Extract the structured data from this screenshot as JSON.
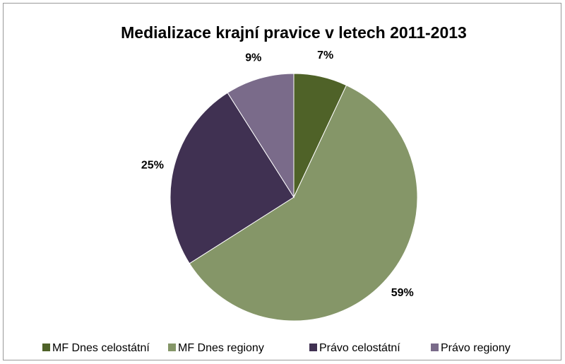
{
  "chart_data": {
    "type": "pie",
    "title": "Medializace krajní pravice v letech 2011-2013",
    "categories": [
      "MF Dnes celostátní",
      "MF Dnes regiony",
      "Právo celostátní",
      "Právo regiony"
    ],
    "values": [
      7,
      59,
      25,
      9
    ],
    "value_labels": [
      "7%",
      "59%",
      "25%",
      "9%"
    ],
    "colors": [
      "#4f6228",
      "#859668",
      "#403152",
      "#7a6b8a"
    ],
    "legend": "bottom"
  }
}
